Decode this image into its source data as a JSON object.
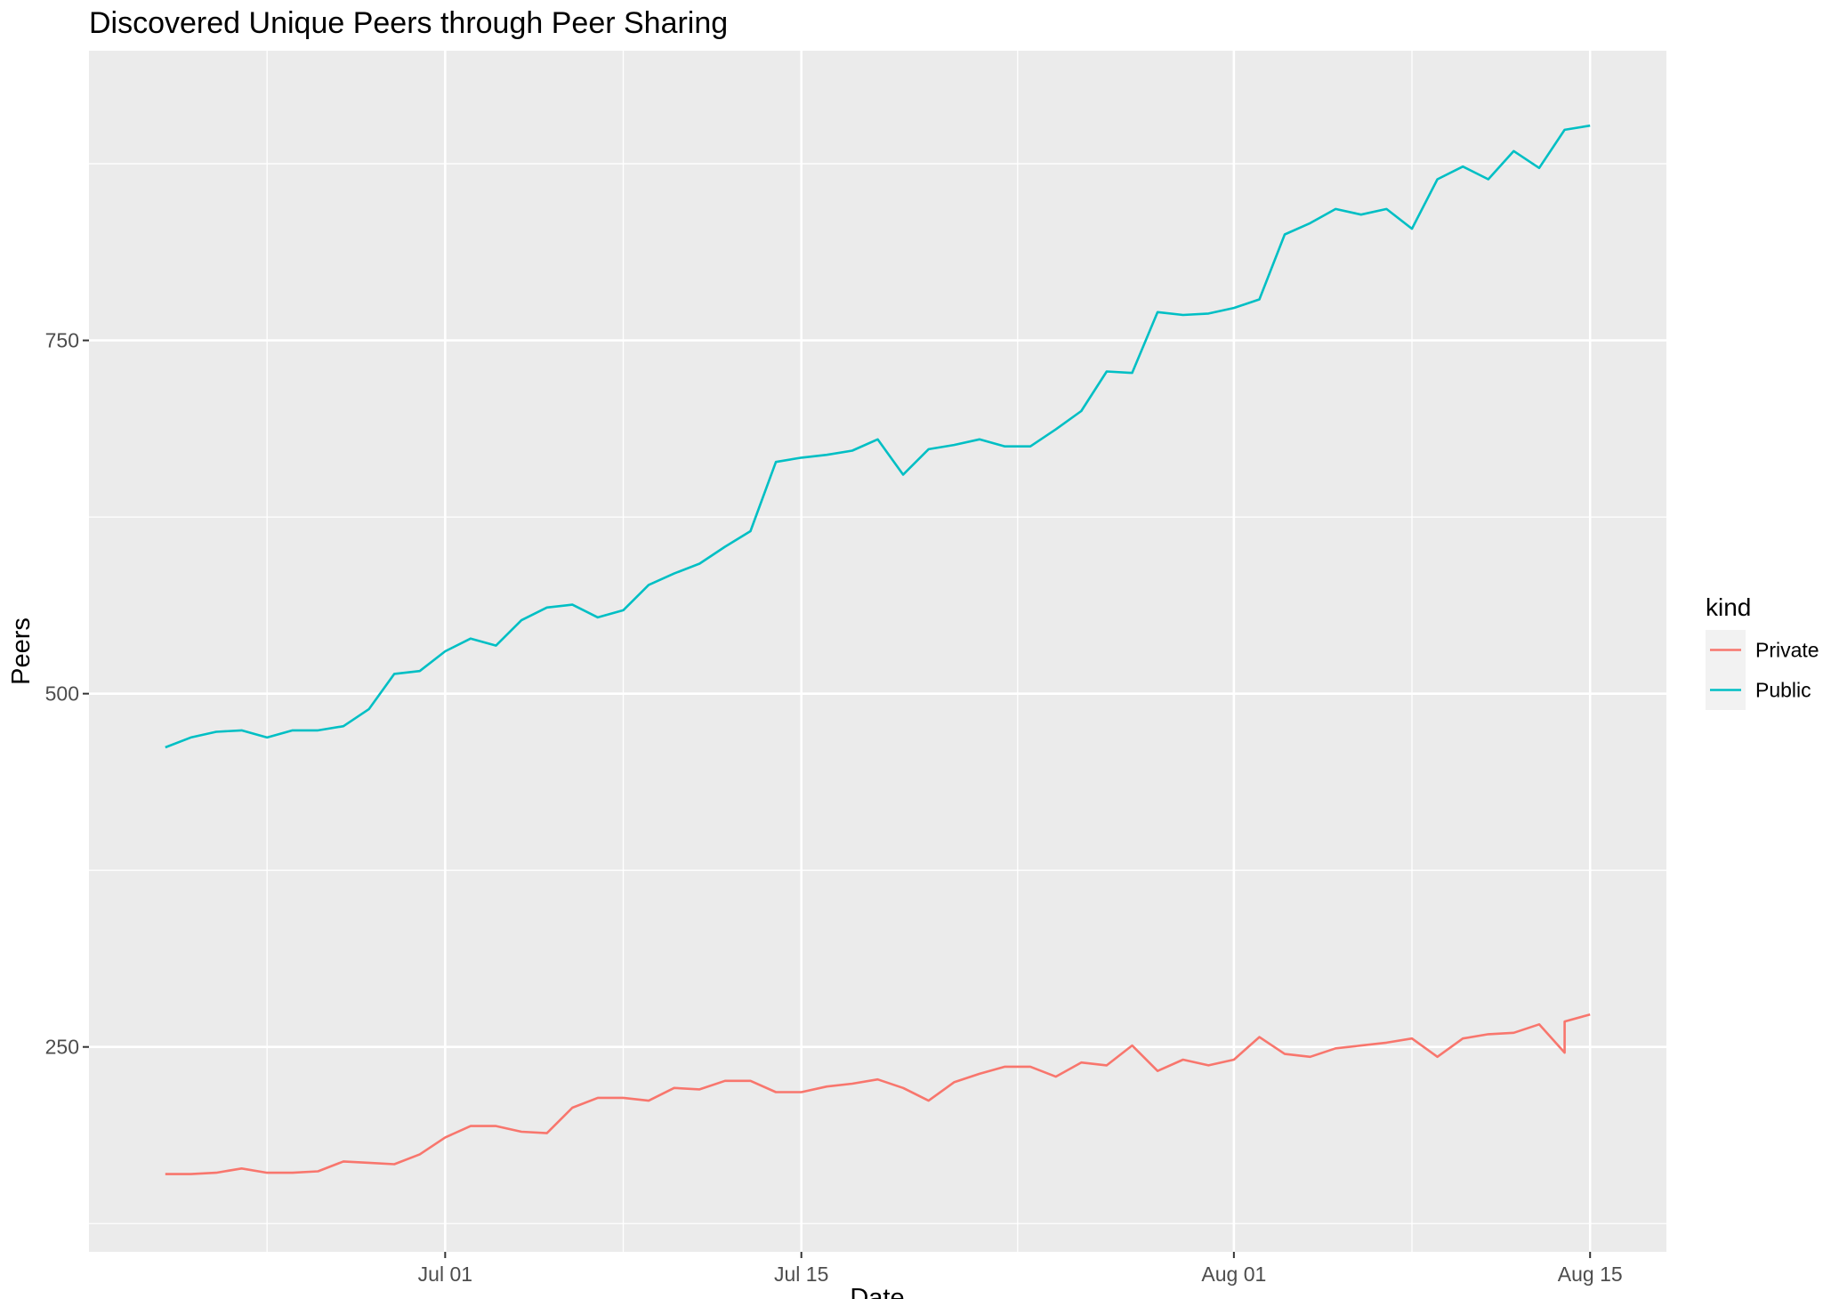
{
  "chart_data": {
    "type": "line",
    "title": "Discovered Unique Peers through Peer Sharing",
    "xlabel": "Date",
    "ylabel": "Peers",
    "x_axis_type": "date",
    "x_ticks": [
      "2024-07-01",
      "2024-07-15",
      "2024-08-01",
      "2024-08-15"
    ],
    "x_tick_labels": [
      "Jul 01",
      "Jul 15",
      "Aug 01",
      "Aug 15"
    ],
    "xlim": [
      "2024-06-17",
      "2024-08-18"
    ],
    "y_ticks": [
      250,
      500,
      750
    ],
    "y_tick_labels": [
      "250",
      "500",
      "750"
    ],
    "ylim": [
      105,
      955
    ],
    "grid": true,
    "legend_title": "kind",
    "legend_position": "right",
    "series": [
      {
        "name": "Private",
        "color": "#F8766D",
        "points": [
          [
            "2024-06-20",
            160
          ],
          [
            "2024-06-21",
            160
          ],
          [
            "2024-06-22",
            161
          ],
          [
            "2024-06-23",
            164
          ],
          [
            "2024-06-24",
            161
          ],
          [
            "2024-06-25",
            161
          ],
          [
            "2024-06-26",
            162
          ],
          [
            "2024-06-27",
            169
          ],
          [
            "2024-06-28",
            168
          ],
          [
            "2024-06-29",
            167
          ],
          [
            "2024-06-30",
            174
          ],
          [
            "2024-07-01",
            186
          ],
          [
            "2024-07-02",
            194
          ],
          [
            "2024-07-03",
            194
          ],
          [
            "2024-07-04",
            190
          ],
          [
            "2024-07-05",
            189
          ],
          [
            "2024-07-06",
            207
          ],
          [
            "2024-07-07",
            214
          ],
          [
            "2024-07-08",
            214
          ],
          [
            "2024-07-09",
            212
          ],
          [
            "2024-07-10",
            221
          ],
          [
            "2024-07-11",
            220
          ],
          [
            "2024-07-12",
            226
          ],
          [
            "2024-07-13",
            226
          ],
          [
            "2024-07-14",
            218
          ],
          [
            "2024-07-15",
            218
          ],
          [
            "2024-07-16",
            222
          ],
          [
            "2024-07-17",
            224
          ],
          [
            "2024-07-18",
            227
          ],
          [
            "2024-07-19",
            221
          ],
          [
            "2024-07-20",
            212
          ],
          [
            "2024-07-21",
            225
          ],
          [
            "2024-07-22",
            231
          ],
          [
            "2024-07-23",
            236
          ],
          [
            "2024-07-24",
            236
          ],
          [
            "2024-07-25",
            229
          ],
          [
            "2024-07-26",
            239
          ],
          [
            "2024-07-27",
            237
          ],
          [
            "2024-07-28",
            251
          ],
          [
            "2024-07-29",
            233
          ],
          [
            "2024-07-30",
            241
          ],
          [
            "2024-07-31",
            237
          ],
          [
            "2024-08-01",
            241
          ],
          [
            "2024-08-02",
            257
          ],
          [
            "2024-08-03",
            245
          ],
          [
            "2024-08-04",
            243
          ],
          [
            "2024-08-05",
            249
          ],
          [
            "2024-08-06",
            251
          ],
          [
            "2024-08-07",
            253
          ],
          [
            "2024-08-08",
            256
          ],
          [
            "2024-08-09",
            243
          ],
          [
            "2024-08-10",
            256
          ],
          [
            "2024-08-11",
            259
          ],
          [
            "2024-08-12",
            260
          ],
          [
            "2024-08-13",
            266
          ],
          [
            "2024-08-14",
            246
          ],
          [
            "2024-08-14",
            268
          ],
          [
            "2024-08-15",
            273
          ]
        ]
      },
      {
        "name": "Public",
        "color": "#00BFC4",
        "points": [
          [
            "2024-06-20",
            462
          ],
          [
            "2024-06-21",
            469
          ],
          [
            "2024-06-22",
            473
          ],
          [
            "2024-06-23",
            474
          ],
          [
            "2024-06-24",
            469
          ],
          [
            "2024-06-25",
            474
          ],
          [
            "2024-06-26",
            474
          ],
          [
            "2024-06-27",
            477
          ],
          [
            "2024-06-28",
            489
          ],
          [
            "2024-06-29",
            514
          ],
          [
            "2024-06-30",
            516
          ],
          [
            "2024-07-01",
            530
          ],
          [
            "2024-07-02",
            539
          ],
          [
            "2024-07-03",
            534
          ],
          [
            "2024-07-04",
            552
          ],
          [
            "2024-07-05",
            561
          ],
          [
            "2024-07-06",
            563
          ],
          [
            "2024-07-07",
            554
          ],
          [
            "2024-07-08",
            559
          ],
          [
            "2024-07-09",
            577
          ],
          [
            "2024-07-10",
            585
          ],
          [
            "2024-07-11",
            592
          ],
          [
            "2024-07-12",
            604
          ],
          [
            "2024-07-13",
            615
          ],
          [
            "2024-07-14",
            664
          ],
          [
            "2024-07-15",
            667
          ],
          [
            "2024-07-16",
            669
          ],
          [
            "2024-07-17",
            672
          ],
          [
            "2024-07-18",
            680
          ],
          [
            "2024-07-19",
            655
          ],
          [
            "2024-07-20",
            673
          ],
          [
            "2024-07-21",
            676
          ],
          [
            "2024-07-22",
            680
          ],
          [
            "2024-07-23",
            675
          ],
          [
            "2024-07-24",
            675
          ],
          [
            "2024-07-25",
            687
          ],
          [
            "2024-07-26",
            700
          ],
          [
            "2024-07-27",
            728
          ],
          [
            "2024-07-28",
            727
          ],
          [
            "2024-07-29",
            770
          ],
          [
            "2024-07-30",
            768
          ],
          [
            "2024-07-31",
            769
          ],
          [
            "2024-08-01",
            773
          ],
          [
            "2024-08-02",
            779
          ],
          [
            "2024-08-03",
            825
          ],
          [
            "2024-08-04",
            833
          ],
          [
            "2024-08-05",
            843
          ],
          [
            "2024-08-06",
            839
          ],
          [
            "2024-08-07",
            843
          ],
          [
            "2024-08-08",
            829
          ],
          [
            "2024-08-09",
            864
          ],
          [
            "2024-08-10",
            873
          ],
          [
            "2024-08-11",
            864
          ],
          [
            "2024-08-12",
            884
          ],
          [
            "2024-08-13",
            872
          ],
          [
            "2024-08-14",
            899
          ],
          [
            "2024-08-15",
            902
          ]
        ]
      }
    ]
  }
}
